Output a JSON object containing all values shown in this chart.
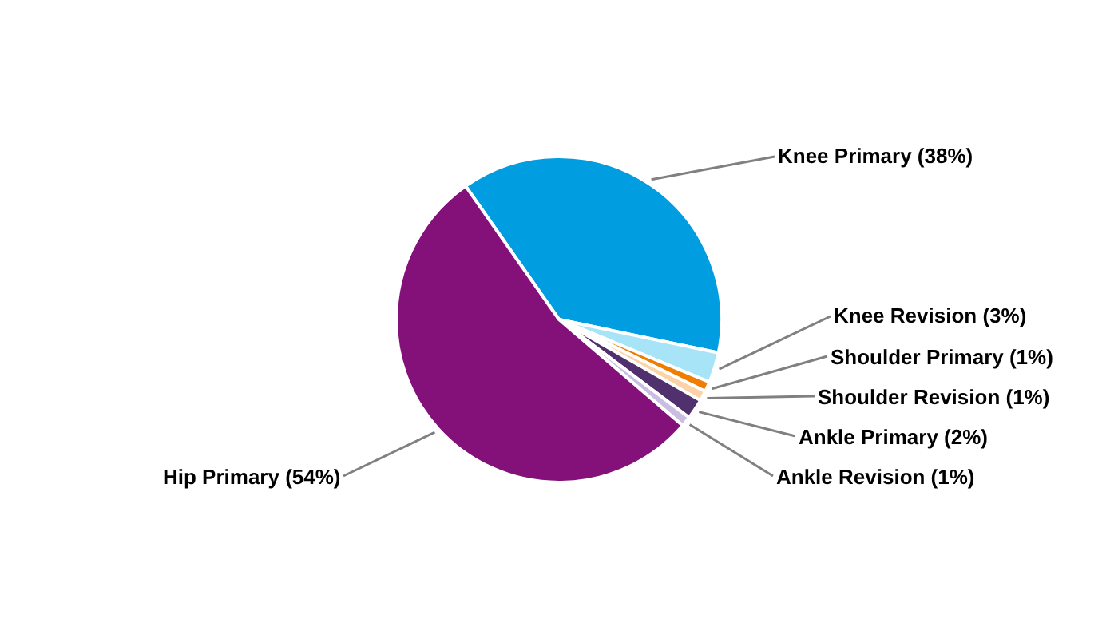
{
  "chart_data": {
    "type": "pie",
    "categories": [
      "Knee Primary",
      "Knee Revision",
      "Shoulder Primary",
      "Shoulder Revision",
      "Ankle Primary",
      "Ankle Revision",
      "Hip Primary"
    ],
    "values": [
      38,
      3,
      1,
      1,
      2,
      1,
      54
    ],
    "value_labels": [
      "(38%)",
      "(3%)",
      "(1%)",
      "(1%)",
      "(2%)",
      "(1%)",
      "(54%)"
    ],
    "colors": [
      "#009de0",
      "#a8e4f8",
      "#f07d00",
      "#fcd3a8",
      "#51306e",
      "#c9bde2",
      "#84107a"
    ],
    "legend": false
  }
}
